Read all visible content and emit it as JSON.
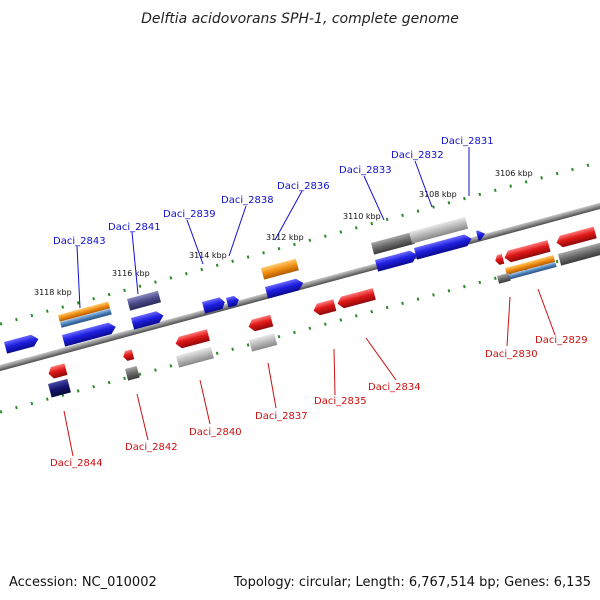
{
  "title": "Delftia acidovorans SPH-1, complete genome",
  "footer": {
    "accession": "Accession: NC_010002",
    "topology": "Topology: circular; Length: 6,767,514 bp; Genes: 6,135"
  },
  "kbp_ticks": [
    "3106 kbp",
    "3108 kbp",
    "3110 kbp",
    "3112 kbp",
    "3114 kbp",
    "3116 kbp",
    "3118 kbp"
  ],
  "genes_top": [
    "Daci_2831",
    "Daci_2832",
    "Daci_2833",
    "Daci_2836",
    "Daci_2838",
    "Daci_2839",
    "Daci_2841",
    "Daci_2843"
  ],
  "genes_bottom": [
    "Daci_2829",
    "Daci_2830",
    "Daci_2834",
    "Daci_2835",
    "Daci_2837",
    "Daci_2840",
    "Daci_2842",
    "Daci_2844"
  ],
  "colors": {
    "backbone": "#8c8c8c",
    "tick": "#2a8a2a",
    "top_label": "#1010cc",
    "bottom_label": "#cc1010",
    "blue_gene": "#1f1fe0",
    "red_gene": "#e01818",
    "orange_gene": "#f08c10",
    "steelblue_gene": "#4a7fb8",
    "slate_gene": "#4a4a8a",
    "navy_gene": "#14146e",
    "darkgray_gene": "#6a6a6a",
    "lightgray_gene": "#b8b8b8"
  }
}
